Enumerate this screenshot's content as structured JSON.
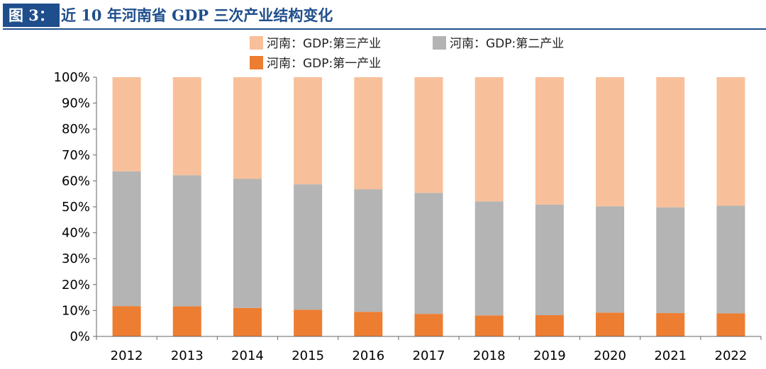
{
  "figure": {
    "label": "图 3：",
    "title": "近 10 年河南省 GDP 三次产业结构变化"
  },
  "chart_data": {
    "type": "bar",
    "stacked": true,
    "percent": true,
    "categories": [
      "2012",
      "2013",
      "2014",
      "2015",
      "2016",
      "2017",
      "2018",
      "2019",
      "2020",
      "2021",
      "2022"
    ],
    "series": [
      {
        "name": "河南：GDP:第一产业",
        "color": "#ed7d31",
        "values": [
          11.7,
          11.6,
          11.0,
          10.3,
          9.5,
          8.7,
          8.1,
          8.2,
          9.2,
          9.0,
          8.9
        ]
      },
      {
        "name": "河南：GDP:第二产业",
        "color": "#b4b4b4",
        "values": [
          52.0,
          50.6,
          49.8,
          48.4,
          47.3,
          46.7,
          44.0,
          42.7,
          41.0,
          40.8,
          41.5
        ]
      },
      {
        "name": "河南：GDP:第三产业",
        "color": "#f8c09a",
        "values": [
          36.3,
          37.8,
          39.2,
          41.3,
          43.2,
          44.6,
          47.9,
          49.1,
          49.8,
          50.2,
          49.6
        ]
      }
    ],
    "ylim": [
      0,
      100
    ],
    "yticks": [
      "0%",
      "10%",
      "20%",
      "30%",
      "40%",
      "50%",
      "60%",
      "70%",
      "80%",
      "90%",
      "100%"
    ],
    "grid": false,
    "legend": "top"
  }
}
